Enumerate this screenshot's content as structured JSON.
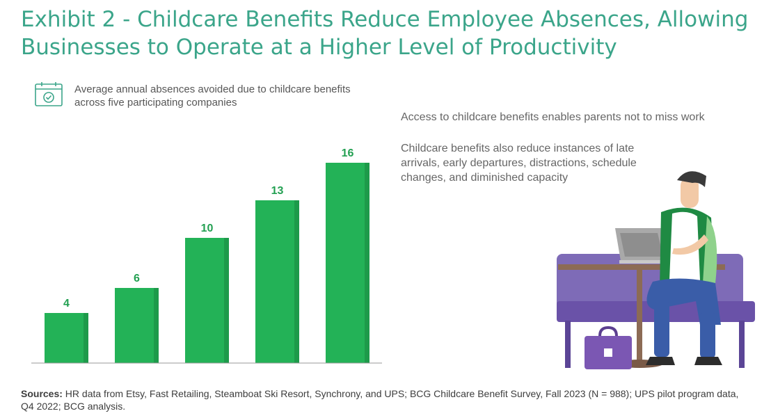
{
  "title": "Exhibit 2 - Childcare Benefits Reduce Employee Absences, Allowing Businesses to Operate at a Higher Level of Productivity",
  "legend": {
    "icon": "calendar-check-icon",
    "text": "Average annual absences avoided due to childcare benefits across five participating companies"
  },
  "notes": {
    "access": "Access to childcare benefits enables parents not to miss work",
    "reduce": "Childcare benefits also reduce instances of late arrivals, early departures,  distractions, schedule changes, and diminished capacity"
  },
  "sources": {
    "label": "Sources:",
    "text": " HR data from Etsy, Fast Retailing, Steamboat Ski Resort, Synchrony, and UPS; BCG Childcare Benefit Survey, Fall 2023 (N = 988); UPS pilot program data, Q4 2022; BCG analysis."
  },
  "colors": {
    "title": "#3ba58a",
    "bar": "#23b257",
    "bar_edge": "#1d9a4a",
    "bar_label": "#23a052"
  },
  "chart_data": {
    "type": "bar",
    "categories": [
      "",
      "",
      "",
      "",
      ""
    ],
    "values": [
      4,
      6,
      10,
      13,
      16
    ],
    "data_labels": [
      "4",
      "6",
      "10",
      "13",
      "16"
    ],
    "title": "",
    "xlabel": "",
    "ylabel": "",
    "ylim": [
      0,
      16
    ],
    "grid": false,
    "legend_placement": "top-left"
  }
}
